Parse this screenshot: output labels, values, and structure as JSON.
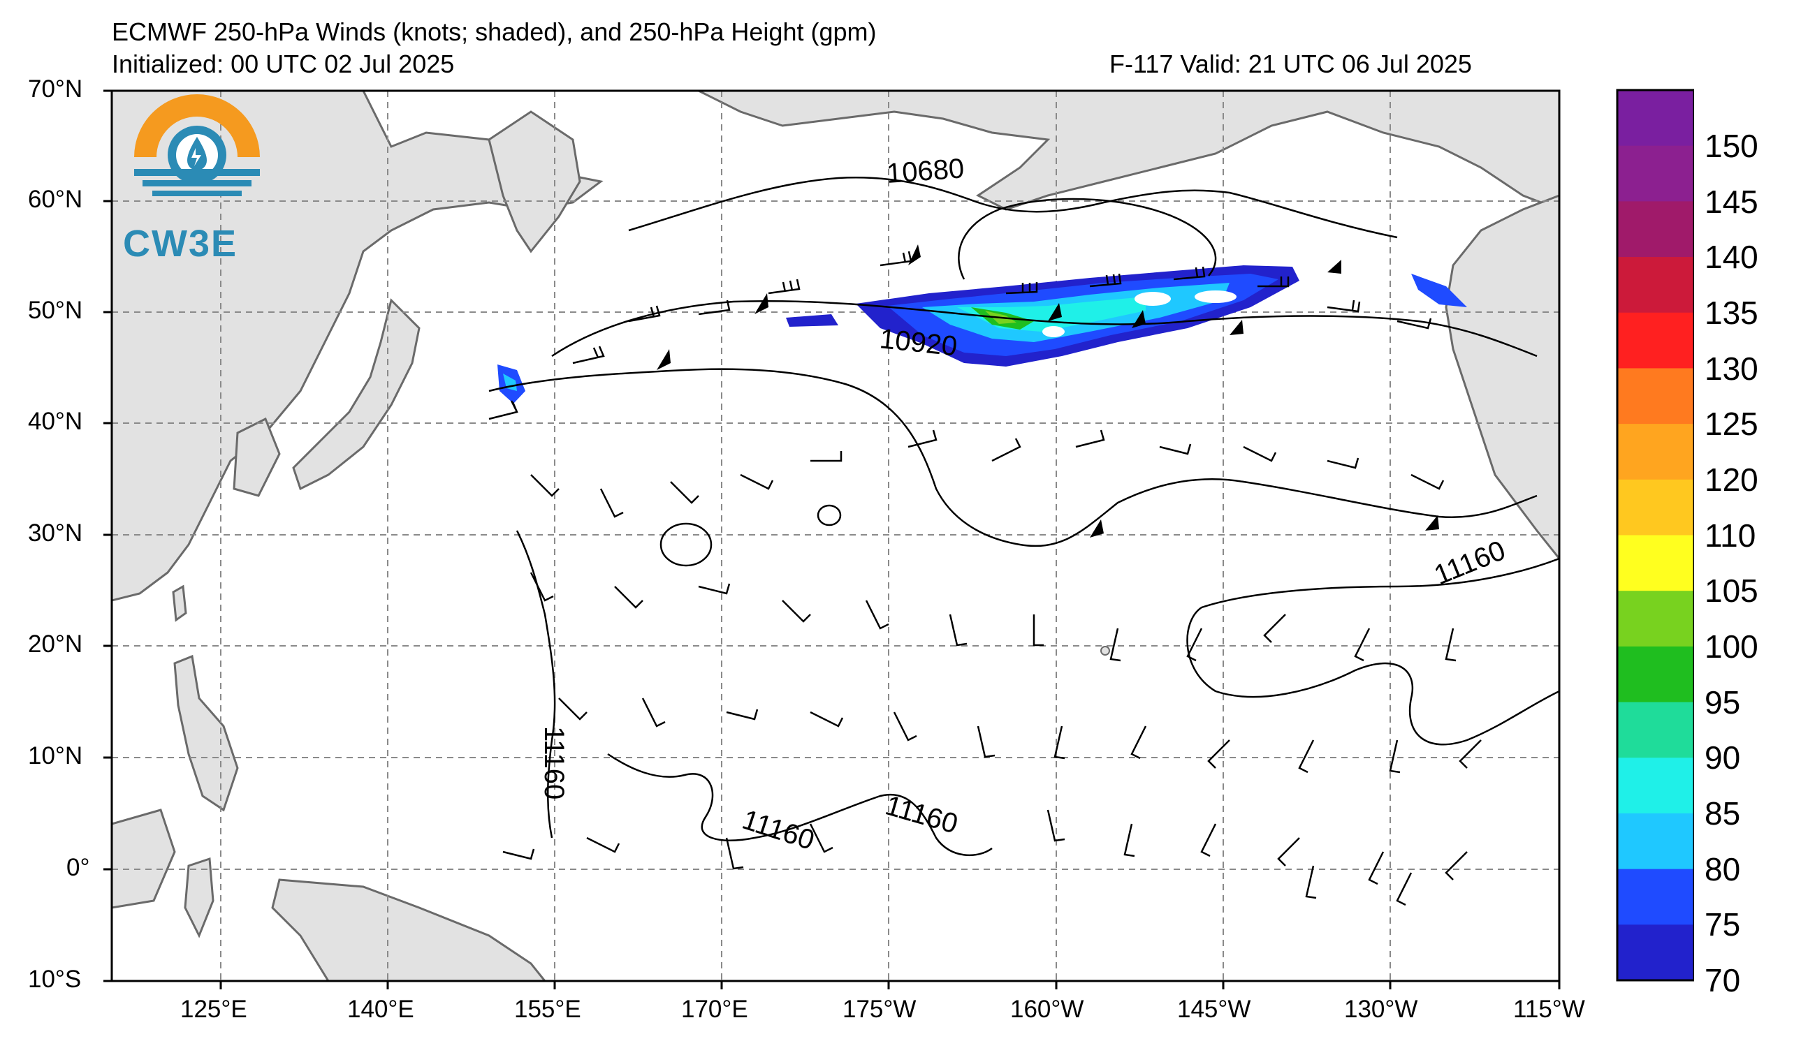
{
  "header": {
    "title": "ECMWF 250-hPa Winds (knots; shaded), and 250-hPa Height (gpm)",
    "initialized": "Initialized: 00 UTC 02 Jul 2025",
    "valid": "F-117  Valid: 21 UTC 06 Jul 2025"
  },
  "logo": {
    "text": "CW3E",
    "colors": {
      "sun": "#f59a1f",
      "water": "#2b8bb5"
    }
  },
  "axes": {
    "lat_labels": [
      "70°N",
      "60°N",
      "50°N",
      "40°N",
      "30°N",
      "20°N",
      "10°N",
      "0°",
      "10°S"
    ],
    "lon_labels": [
      "125°E",
      "140°E",
      "155°E",
      "170°E",
      "175°W",
      "160°W",
      "145°W",
      "130°W",
      "115°W"
    ]
  },
  "contour_labels": [
    "10680",
    "10920",
    "11160",
    "11160",
    "11160",
    "11160"
  ],
  "colorbar": {
    "labels": [
      "150",
      "145",
      "140",
      "135",
      "130",
      "125",
      "120",
      "110",
      "105",
      "100",
      "95",
      "90",
      "85",
      "80",
      "75",
      "70"
    ],
    "colors": [
      "#7a1fa0",
      "#8c2090",
      "#a01a6a",
      "#cc1a3a",
      "#ff2020",
      "#ff7a1f",
      "#ffa51f",
      "#ffc81f",
      "#ffff1f",
      "#78d21f",
      "#1fbe1f",
      "#1fdc9a",
      "#1ff0e8",
      "#1fc8ff",
      "#1f4bff",
      "#2222cc"
    ]
  }
}
